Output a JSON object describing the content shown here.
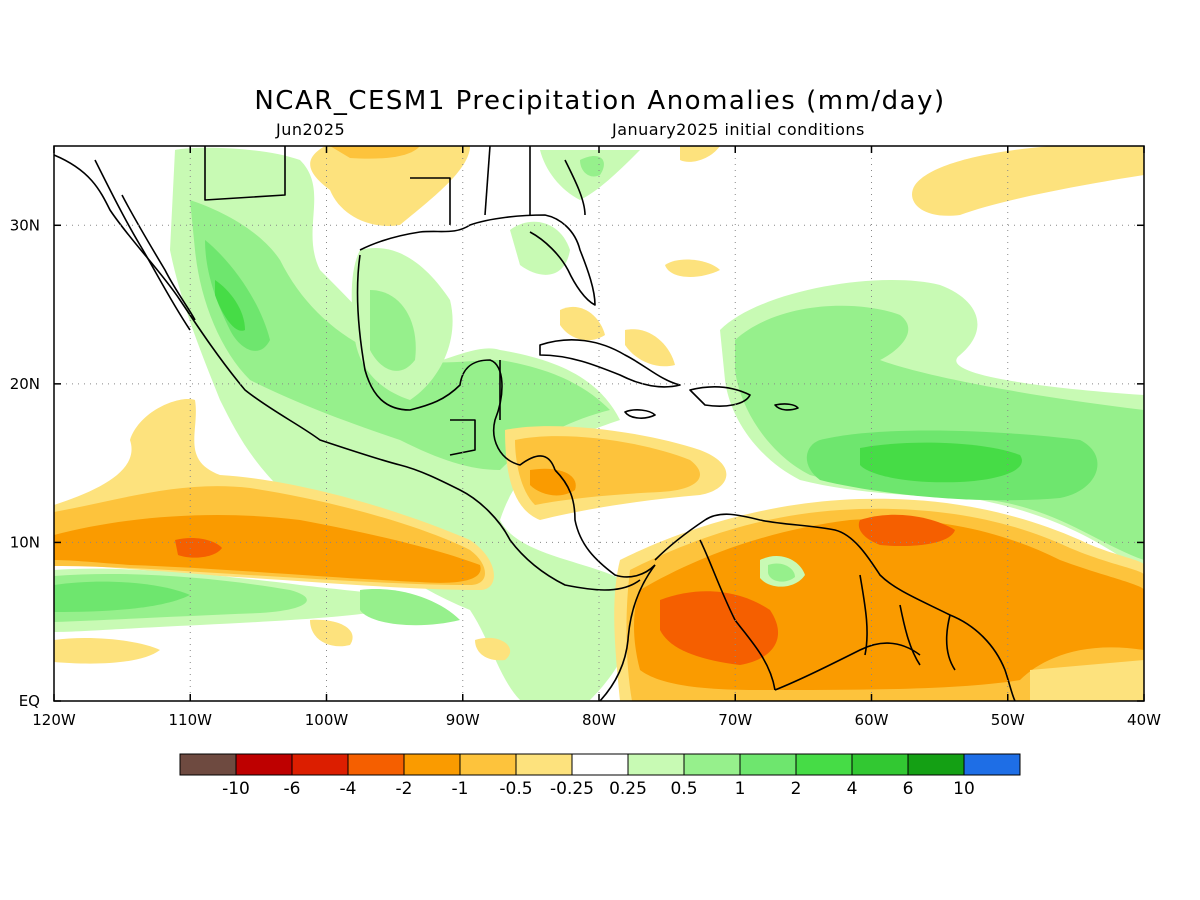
{
  "title": "NCAR_CESM1 Precipitation Anomalies (mm/day)",
  "subtitle_left": "Jun2025",
  "subtitle_right": "January2025 initial conditions",
  "map": {
    "lon_range": [
      -120,
      -40
    ],
    "lat_range": [
      0,
      35
    ],
    "grid": true,
    "x_ticks": [
      {
        "value": -120,
        "label": "120W"
      },
      {
        "value": -110,
        "label": "110W"
      },
      {
        "value": -100,
        "label": "100W"
      },
      {
        "value": -90,
        "label": "90W"
      },
      {
        "value": -80,
        "label": "80W"
      },
      {
        "value": -70,
        "label": "70W"
      },
      {
        "value": -60,
        "label": "60W"
      },
      {
        "value": -50,
        "label": "50W"
      },
      {
        "value": -40,
        "label": "40W"
      }
    ],
    "y_ticks": [
      {
        "value": 0,
        "label": "EQ"
      },
      {
        "value": 10,
        "label": "10N"
      },
      {
        "value": 20,
        "label": "20N"
      },
      {
        "value": 30,
        "label": "30N"
      }
    ]
  },
  "colorbar": {
    "colors": [
      "#6e4a40",
      "#be0000",
      "#dc1e00",
      "#f55f00",
      "#fa9b00",
      "#fdc33c",
      "#fde27d",
      "#ffffff",
      "#c8fab4",
      "#96f08c",
      "#6ee66e",
      "#46dc46",
      "#32c832",
      "#14a014",
      "#1e6ee6"
    ],
    "labels": [
      "-10",
      "-6",
      "-4",
      "-2",
      "-1",
      "-0.5",
      "-0.25",
      "0.25",
      "0.5",
      "1",
      "2",
      "4",
      "6",
      "10"
    ]
  }
}
